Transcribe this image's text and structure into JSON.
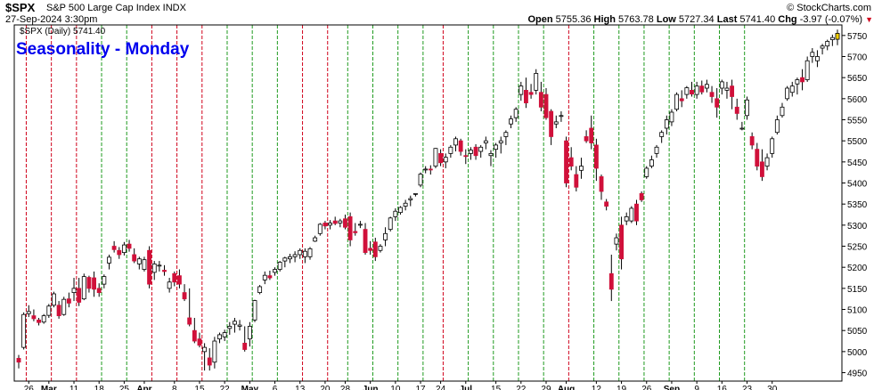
{
  "header": {
    "symbol": "$SPX",
    "name": "S&P 500 Large Cap Index INDX",
    "brand": "© StockCharts.com",
    "timestamp": "27-Sep-2024 3:30pm",
    "quote": {
      "open_label": "Open",
      "open": "5755.36",
      "high_label": "High",
      "high": "5763.78",
      "low_label": "Low",
      "low": "5727.34",
      "last_label": "Last",
      "last": "5741.40",
      "chg_label": "Chg",
      "chg": "-3.97 (-0.07%)"
    },
    "legend": "$SPX (Daily) 5741.40"
  },
  "colors": {
    "up_fill": "#ffffff",
    "down_fill": "#d0103a",
    "last_bar": "#f5d000",
    "monday_line_down": "#d0021b",
    "monday_line_up": "#1f9a1f",
    "title": "#0000ee"
  },
  "chart_data": {
    "type": "candlestick",
    "title": "Seasonality - Monday",
    "ylim": [
      4930,
      5775
    ],
    "y_ticks": [
      4950,
      5000,
      5050,
      5100,
      5150,
      5200,
      5250,
      5300,
      5350,
      5400,
      5450,
      5500,
      5550,
      5600,
      5650,
      5700,
      5750
    ],
    "x_tick_labels": [
      "26",
      "Mar",
      "11",
      "18",
      "25",
      "Apr",
      "8",
      "15",
      "22",
      "May",
      "6",
      "13",
      "20",
      "28",
      "Jun",
      "10",
      "17",
      "24",
      "Jul",
      "15",
      "22",
      "29",
      "Aug",
      "12",
      "19",
      "26",
      "Sep",
      "9",
      "16",
      "23",
      "30"
    ],
    "x_tick_index": [
      2,
      6,
      11,
      16,
      21,
      25,
      31,
      36,
      41,
      46,
      51,
      56,
      61,
      65,
      70,
      75,
      80,
      84,
      89,
      95,
      100,
      105,
      109,
      115,
      120,
      125,
      130,
      135,
      140,
      145,
      150
    ],
    "monday_lines": [
      {
        "i": 2,
        "c": "down"
      },
      {
        "i": 7,
        "c": "down"
      },
      {
        "i": 12,
        "c": "down"
      },
      {
        "i": 17,
        "c": "up"
      },
      {
        "i": 22,
        "c": "up"
      },
      {
        "i": 27,
        "c": "down"
      },
      {
        "i": 32,
        "c": "down"
      },
      {
        "i": 37,
        "c": "down"
      },
      {
        "i": 42,
        "c": "up"
      },
      {
        "i": 47,
        "c": "up"
      },
      {
        "i": 52,
        "c": "up"
      },
      {
        "i": 57,
        "c": "down"
      },
      {
        "i": 62,
        "c": "down"
      },
      {
        "i": 66,
        "c": "up"
      },
      {
        "i": 71,
        "c": "up"
      },
      {
        "i": 76,
        "c": "up"
      },
      {
        "i": 81,
        "c": "up"
      },
      {
        "i": 85,
        "c": "down"
      },
      {
        "i": 90,
        "c": "up"
      },
      {
        "i": 95,
        "c": "up"
      },
      {
        "i": 100,
        "c": "up"
      },
      {
        "i": 105,
        "c": "up"
      },
      {
        "i": 110,
        "c": "down"
      },
      {
        "i": 115,
        "c": "up"
      },
      {
        "i": 120,
        "c": "up"
      },
      {
        "i": 125,
        "c": "up"
      },
      {
        "i": 130,
        "c": "up"
      },
      {
        "i": 135,
        "c": "up"
      },
      {
        "i": 140,
        "c": "up"
      },
      {
        "i": 145,
        "c": "up"
      }
    ],
    "ohlc": [
      [
        4984,
        4992,
        4960,
        4975
      ],
      [
        5010,
        5093,
        5005,
        5088
      ],
      [
        5090,
        5110,
        5082,
        5095
      ],
      [
        5085,
        5100,
        5072,
        5078
      ],
      [
        5075,
        5080,
        5062,
        5069
      ],
      [
        5070,
        5089,
        5066,
        5085
      ],
      [
        5086,
        5113,
        5080,
        5108
      ],
      [
        5110,
        5142,
        5105,
        5137
      ],
      [
        5110,
        5120,
        5078,
        5085
      ],
      [
        5088,
        5130,
        5085,
        5124
      ],
      [
        5125,
        5140,
        5105,
        5115
      ],
      [
        5140,
        5175,
        5120,
        5150
      ],
      [
        5150,
        5175,
        5108,
        5117
      ],
      [
        5125,
        5185,
        5122,
        5178
      ],
      [
        5176,
        5180,
        5140,
        5150
      ],
      [
        5175,
        5190,
        5130,
        5148
      ],
      [
        5150,
        5162,
        5130,
        5140
      ],
      [
        5160,
        5183,
        5150,
        5178
      ],
      [
        5210,
        5230,
        5195,
        5224
      ],
      [
        5250,
        5262,
        5235,
        5242
      ],
      [
        5240,
        5248,
        5220,
        5230
      ],
      [
        5235,
        5260,
        5228,
        5253
      ],
      [
        5255,
        5265,
        5237,
        5245
      ],
      [
        5230,
        5245,
        5210,
        5215
      ],
      [
        5208,
        5225,
        5195,
        5220
      ],
      [
        5195,
        5225,
        5190,
        5218
      ],
      [
        5240,
        5250,
        5150,
        5160
      ],
      [
        5188,
        5215,
        5170,
        5208
      ],
      [
        5205,
        5215,
        5190,
        5205
      ],
      [
        5193,
        5205,
        5180,
        5190
      ],
      [
        5150,
        5175,
        5140,
        5165
      ],
      [
        5185,
        5190,
        5155,
        5165
      ],
      [
        5180,
        5195,
        5150,
        5160
      ],
      [
        5140,
        5160,
        5120,
        5125
      ],
      [
        5080,
        5150,
        5060,
        5065
      ],
      [
        5050,
        5080,
        5020,
        5025
      ],
      [
        5030,
        5045,
        5010,
        5015
      ],
      [
        5000,
        5020,
        4955,
        5010
      ],
      [
        4985,
        5008,
        4955,
        4968
      ],
      [
        4975,
        5035,
        4960,
        5025
      ],
      [
        5030,
        5045,
        5020,
        5040
      ],
      [
        5035,
        5052,
        5025,
        5045
      ],
      [
        5055,
        5070,
        5040,
        5060
      ],
      [
        5065,
        5080,
        5045,
        5072
      ],
      [
        5060,
        5075,
        5050,
        5063
      ],
      [
        5020,
        5060,
        5000,
        5005
      ],
      [
        5030,
        5070,
        5012,
        5060
      ],
      [
        5075,
        5123,
        5070,
        5121
      ],
      [
        5140,
        5158,
        5136,
        5154
      ],
      [
        5170,
        5190,
        5160,
        5181
      ],
      [
        5180,
        5192,
        5170,
        5175
      ],
      [
        5188,
        5200,
        5180,
        5195
      ],
      [
        5195,
        5215,
        5190,
        5212
      ],
      [
        5215,
        5225,
        5200,
        5222
      ],
      [
        5220,
        5232,
        5210,
        5225
      ],
      [
        5225,
        5238,
        5212,
        5230
      ],
      [
        5230,
        5245,
        5220,
        5240
      ],
      [
        5225,
        5245,
        5210,
        5238
      ],
      [
        5225,
        5248,
        5218,
        5244
      ],
      [
        5262,
        5275,
        5260,
        5270
      ],
      [
        5280,
        5305,
        5275,
        5302
      ],
      [
        5305,
        5310,
        5290,
        5298
      ],
      [
        5300,
        5312,
        5290,
        5305
      ],
      [
        5310,
        5320,
        5300,
        5304
      ],
      [
        5305,
        5315,
        5295,
        5310
      ],
      [
        5315,
        5325,
        5290,
        5295
      ],
      [
        5320,
        5330,
        5250,
        5265
      ],
      [
        5285,
        5305,
        5275,
        5282
      ],
      [
        5300,
        5310,
        5293,
        5302
      ],
      [
        5290,
        5305,
        5230,
        5235
      ],
      [
        5245,
        5262,
        5230,
        5240
      ],
      [
        5260,
        5270,
        5215,
        5225
      ],
      [
        5240,
        5255,
        5235,
        5250
      ],
      [
        5265,
        5295,
        5250,
        5280
      ],
      [
        5290,
        5320,
        5285,
        5317
      ],
      [
        5320,
        5340,
        5310,
        5333
      ],
      [
        5330,
        5345,
        5325,
        5342
      ],
      [
        5345,
        5360,
        5335,
        5352
      ],
      [
        5360,
        5370,
        5345,
        5363
      ],
      [
        5375,
        5375,
        5368,
        5375
      ],
      [
        5395,
        5425,
        5390,
        5421
      ],
      [
        5432,
        5440,
        5423,
        5433
      ],
      [
        5433,
        5442,
        5420,
        5431
      ],
      [
        5440,
        5483,
        5435,
        5482
      ],
      [
        5470,
        5480,
        5440,
        5448
      ],
      [
        5450,
        5470,
        5435,
        5461
      ],
      [
        5470,
        5490,
        5460,
        5485
      ],
      [
        5490,
        5510,
        5475,
        5505
      ],
      [
        5500,
        5505,
        5465,
        5475
      ],
      [
        5465,
        5480,
        5445,
        5463
      ],
      [
        5470,
        5485,
        5455,
        5478
      ],
      [
        5485,
        5492,
        5455,
        5465
      ],
      [
        5475,
        5490,
        5460,
        5485
      ],
      [
        5495,
        5510,
        5480,
        5500
      ],
      [
        5465,
        5478,
        5440,
        5470
      ],
      [
        5480,
        5495,
        5460,
        5490
      ],
      [
        5495,
        5510,
        5470,
        5500
      ],
      [
        5510,
        5525,
        5490,
        5520
      ],
      [
        5540,
        5560,
        5530,
        5552
      ],
      [
        5555,
        5580,
        5545,
        5575
      ],
      [
        5610,
        5640,
        5595,
        5630
      ],
      [
        5620,
        5650,
        5578,
        5590
      ],
      [
        5615,
        5635,
        5600,
        5610
      ],
      [
        5620,
        5670,
        5610,
        5660
      ],
      [
        5615,
        5640,
        5570,
        5580
      ],
      [
        5610,
        5625,
        5550,
        5555
      ],
      [
        5570,
        5575,
        5490,
        5510
      ],
      [
        5540,
        5560,
        5530,
        5545
      ],
      [
        5560,
        5570,
        5545,
        5560
      ],
      [
        5500,
        5510,
        5390,
        5400
      ],
      [
        5460,
        5485,
        5430,
        5440
      ],
      [
        5420,
        5440,
        5380,
        5390
      ],
      [
        5430,
        5460,
        5410,
        5440
      ],
      [
        5510,
        5525,
        5495,
        5500
      ],
      [
        5530,
        5560,
        5480,
        5495
      ],
      [
        5490,
        5505,
        5405,
        5435
      ],
      [
        5415,
        5420,
        5360,
        5380
      ],
      [
        5355,
        5362,
        5335,
        5345
      ],
      [
        5185,
        5230,
        5120,
        5148
      ],
      [
        5255,
        5280,
        5240,
        5270
      ],
      [
        5300,
        5320,
        5195,
        5220
      ],
      [
        5310,
        5330,
        5300,
        5320
      ],
      [
        5310,
        5345,
        5305,
        5340
      ],
      [
        5350,
        5360,
        5300,
        5310
      ],
      [
        5375,
        5380,
        5355,
        5360
      ],
      [
        5415,
        5440,
        5410,
        5435
      ],
      [
        5440,
        5465,
        5435,
        5455
      ],
      [
        5470,
        5490,
        5460,
        5485
      ],
      [
        5510,
        5525,
        5495,
        5520
      ],
      [
        5530,
        5560,
        5515,
        5550
      ],
      [
        5545,
        5575,
        5535,
        5568
      ],
      [
        5575,
        5615,
        5570,
        5610
      ],
      [
        5600,
        5620,
        5580,
        5595
      ],
      [
        5610,
        5630,
        5600,
        5626
      ],
      [
        5620,
        5640,
        5605,
        5611
      ],
      [
        5610,
        5640,
        5600,
        5630
      ],
      [
        5630,
        5643,
        5610,
        5616
      ],
      [
        5625,
        5645,
        5615,
        5634
      ],
      [
        5615,
        5630,
        5590,
        5605
      ],
      [
        5600,
        5625,
        5555,
        5580
      ],
      [
        5625,
        5645,
        5610,
        5640
      ],
      [
        5620,
        5640,
        5600,
        5625
      ],
      [
        5630,
        5645,
        5575,
        5605
      ],
      [
        5580,
        5600,
        5550,
        5565
      ],
      [
        5530,
        5545,
        5525,
        5530
      ],
      [
        5560,
        5605,
        5550,
        5597
      ],
      [
        5510,
        5520,
        5480,
        5490
      ],
      [
        5480,
        5495,
        5430,
        5440
      ],
      [
        5450,
        5480,
        5405,
        5415
      ],
      [
        5440,
        5470,
        5430,
        5460
      ],
      [
        5470,
        5510,
        5460,
        5505
      ],
      [
        5520,
        5560,
        5515,
        5550
      ],
      [
        5560,
        5590,
        5555,
        5580
      ],
      [
        5600,
        5630,
        5595,
        5625
      ],
      [
        5615,
        5640,
        5605,
        5630
      ],
      [
        5635,
        5650,
        5610,
        5645
      ],
      [
        5650,
        5670,
        5620,
        5640
      ],
      [
        5645,
        5700,
        5640,
        5690
      ],
      [
        5700,
        5720,
        5685,
        5710
      ],
      [
        5690,
        5715,
        5675,
        5700
      ],
      [
        5720,
        5730,
        5705,
        5725
      ],
      [
        5725,
        5740,
        5715,
        5736
      ],
      [
        5740,
        5752,
        5725,
        5745
      ],
      [
        5755,
        5764,
        5727,
        5741
      ]
    ]
  }
}
